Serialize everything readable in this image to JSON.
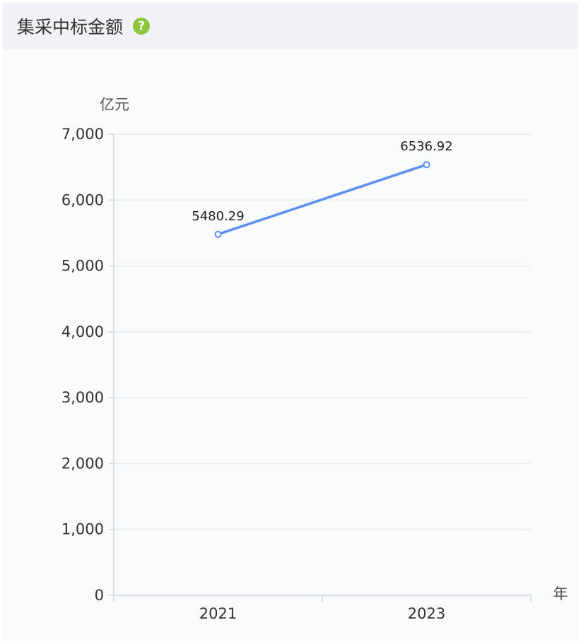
{
  "panel": {
    "title": "集采中标金额",
    "help_icon": "question-circle-icon"
  },
  "colors": {
    "series_line": "#5b8ff0",
    "axis": "#ced6e0",
    "grid": "#e8ecf2",
    "help_icon": "#8cc63f"
  },
  "chart_data": {
    "type": "line",
    "categories": [
      "2021",
      "2023"
    ],
    "series": [
      {
        "values": [
          5480.29,
          6536.92
        ]
      }
    ],
    "data_labels": [
      "5480.29",
      "6536.92"
    ],
    "ylabel": "亿元",
    "xlabel": "年",
    "ylim": [
      0,
      7000
    ],
    "yticks": [
      0,
      1000,
      2000,
      3000,
      4000,
      5000,
      6000,
      7000
    ],
    "ytick_labels": [
      "0",
      "1,000",
      "2,000",
      "3,000",
      "4,000",
      "5,000",
      "6,000",
      "7,000"
    ],
    "grid": true,
    "legend": "none"
  }
}
